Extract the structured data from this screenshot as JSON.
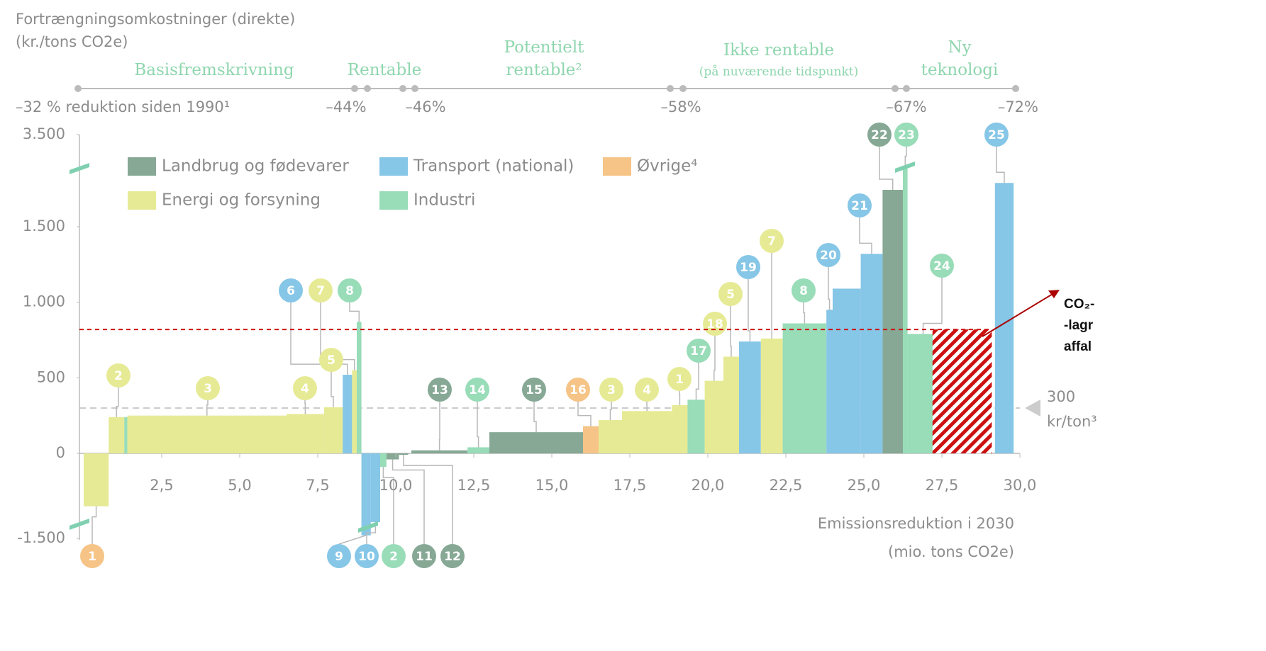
{
  "chart_data": {
    "type": "bar",
    "y_title": [
      "Fortrængningsomkostninger (direkte)",
      "(kr./tons CO2e)"
    ],
    "x_title": [
      "Emissionsreduktion i 2030",
      "(mio. tons CO2e)"
    ],
    "phases": [
      [
        "Basisfremskrivning"
      ],
      [
        "Rentable"
      ],
      [
        "Potentielt",
        "rentable²"
      ],
      [
        "Ikke rentable",
        "(på nuværende tidspunkt)"
      ],
      [
        "Ny",
        "teknologi"
      ]
    ],
    "milestones": [
      "–32 % reduktion siden 1990¹",
      "–44%",
      "–46%",
      "–58%",
      "–67%",
      "–72%"
    ],
    "series": [
      {
        "name": "Landbrug og fødevarer",
        "color": "#86a895"
      },
      {
        "name": "Transport (national)",
        "color": "#86c6e6"
      },
      {
        "name": "Øvrige⁴",
        "color": "#f5c486"
      },
      {
        "name": "Energi og forsyning",
        "color": "#e6ea94"
      },
      {
        "name": "Industri",
        "color": "#98dcb8"
      }
    ],
    "bars": [
      {
        "label": "1",
        "x": [
          0,
          0.8
        ],
        "value": -350,
        "color": "#e6ea94",
        "label_color": "#f5c486"
      },
      {
        "label": "2",
        "x": [
          0.8,
          1.3
        ],
        "value": 240,
        "color": "#e6ea94"
      },
      {
        "label": null,
        "x": [
          1.3,
          1.4
        ],
        "value": 240,
        "color": "#98dcb8"
      },
      {
        "label": "3",
        "x": [
          1.4,
          6.5
        ],
        "value": 250,
        "color": "#e6ea94"
      },
      {
        "label": "4",
        "x": [
          6.5,
          7.7
        ],
        "value": 260,
        "color": "#e6ea94"
      },
      {
        "label": "5",
        "x": [
          7.7,
          8.3
        ],
        "value": 305,
        "color": "#e6ea94"
      },
      {
        "label": "6",
        "x": [
          8.3,
          8.6
        ],
        "value": 520,
        "color": "#86c6e6"
      },
      {
        "label": "7",
        "x": [
          8.6,
          8.75
        ],
        "value": 550,
        "color": "#e6ea94"
      },
      {
        "label": "8",
        "x": [
          8.75,
          8.9
        ],
        "value": 870,
        "color": "#98dcb8"
      },
      {
        "label": "9",
        "x": [
          8.9,
          9.2
        ],
        "value": -1300,
        "color": "#86c6e6"
      },
      {
        "label": "10",
        "x": [
          9.2,
          9.5
        ],
        "value": -455,
        "color": "#86c6e6"
      },
      {
        "label": "2",
        "x": [
          9.5,
          9.7
        ],
        "value": -90,
        "color": "#98dcb8"
      },
      {
        "label": "11",
        "x": [
          9.7,
          10.1
        ],
        "value": -40,
        "color": "#86a895"
      },
      {
        "label": "12",
        "x": [
          10.1,
          10.4
        ],
        "value": -10,
        "color": "#86a895"
      },
      {
        "label": "13",
        "x": [
          10.5,
          12.3
        ],
        "value": 20,
        "color": "#86a895"
      },
      {
        "label": "14",
        "x": [
          12.3,
          13.0
        ],
        "value": 40,
        "color": "#98dcb8"
      },
      {
        "label": "15",
        "x": [
          13.0,
          16.0
        ],
        "value": 140,
        "color": "#86a895"
      },
      {
        "label": "16",
        "x": [
          16.0,
          16.5
        ],
        "value": 180,
        "color": "#f5c486"
      },
      {
        "label": "3",
        "x": [
          16.5,
          17.25
        ],
        "value": 220,
        "color": "#e6ea94"
      },
      {
        "label": "4",
        "x": [
          17.25,
          18.85
        ],
        "value": 280,
        "color": "#e6ea94"
      },
      {
        "label": "1",
        "x": [
          18.85,
          19.35
        ],
        "value": 320,
        "color": "#e6ea94"
      },
      {
        "label": "17",
        "x": [
          19.35,
          19.9
        ],
        "value": 355,
        "color": "#98dcb8"
      },
      {
        "label": "18",
        "x": [
          19.9,
          20.5
        ],
        "value": 480,
        "color": "#e6ea94"
      },
      {
        "label": "5",
        "x": [
          20.5,
          21.0
        ],
        "value": 640,
        "color": "#e6ea94"
      },
      {
        "label": "19",
        "x": [
          21.0,
          21.7
        ],
        "value": 740,
        "color": "#86c6e6"
      },
      {
        "label": "7",
        "x": [
          21.7,
          22.4
        ],
        "value": 760,
        "color": "#e6ea94"
      },
      {
        "label": "8",
        "x": [
          22.4,
          23.8
        ],
        "value": 860,
        "color": "#98dcb8"
      },
      {
        "label": "20",
        "x": [
          23.8,
          24.0
        ],
        "value": 950,
        "color": "#86c6e6"
      },
      {
        "label": null,
        "x": [
          24.0,
          24.9
        ],
        "value": 1090,
        "color": "#86c6e6"
      },
      {
        "label": "21",
        "x": [
          24.9,
          25.6
        ],
        "value": 1320,
        "color": "#86c6e6"
      },
      {
        "label": "22",
        "x": [
          25.6,
          26.25
        ],
        "value": 2300,
        "color": "#86a895"
      },
      {
        "label": "23",
        "x": [
          26.25,
          26.4
        ],
        "value": 2800,
        "color": "#98dcb8"
      },
      {
        "label": "24",
        "x": [
          26.4,
          27.4
        ],
        "value": 790,
        "color": "#98dcb8"
      },
      {
        "label": null,
        "x": [
          27.4,
          28.7
        ],
        "value": 790,
        "color": "#e6ea94"
      },
      {
        "label": "25",
        "x": [
          29.2,
          29.8
        ],
        "value": 2450,
        "color": "#86c6e6"
      }
    ],
    "highlight": {
      "x": [
        27.2,
        29.1
      ],
      "value": 820,
      "color": "#cc1111",
      "text": [
        "CO₂-",
        "-lagr",
        "affal"
      ]
    },
    "reference": {
      "value": 300,
      "unit": "kr/ton³"
    },
    "xlim": [
      0,
      30
    ],
    "xticks": [
      {
        "value": 2.5,
        "label": "2,5"
      },
      {
        "value": 5,
        "label": "5,0"
      },
      {
        "value": 7.5,
        "label": "7,5"
      },
      {
        "value": 10,
        "label": "10,0"
      },
      {
        "value": 12.5,
        "label": "12,5"
      },
      {
        "value": 15,
        "label": "15,0"
      },
      {
        "value": 17.5,
        "label": "17,5"
      },
      {
        "value": 20,
        "label": "20,0"
      },
      {
        "value": 22.5,
        "label": "22,5"
      },
      {
        "value": 25,
        "label": "25,0"
      },
      {
        "value": 27.5,
        "label": "27,5"
      },
      {
        "value": 30,
        "label": "30,0"
      }
    ],
    "ylim": [
      -1500,
      3500
    ],
    "yticks": [
      {
        "value": -1500,
        "label": "-1.500"
      },
      0,
      500,
      {
        "value": 1000,
        "label": "1.000"
      },
      {
        "value": 1500,
        "label": "1.500"
      },
      {
        "value": 3500,
        "label": "3.500"
      }
    ]
  }
}
